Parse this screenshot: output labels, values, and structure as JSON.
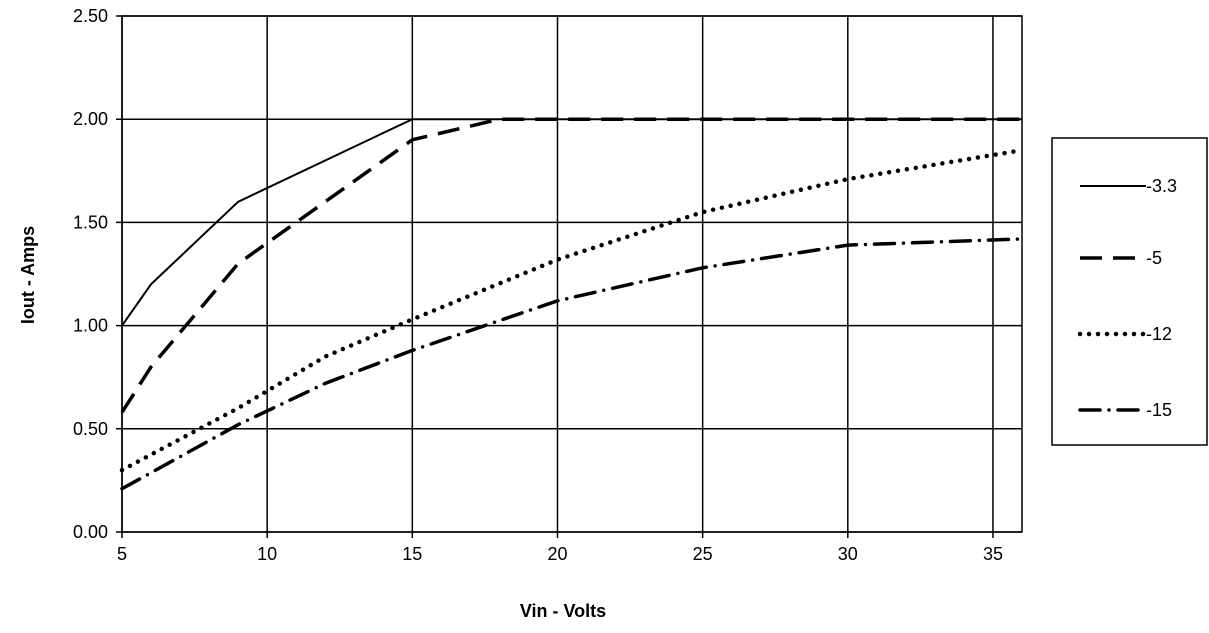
{
  "chart_data": {
    "type": "line",
    "title": "",
    "xlabel": "Vin - Volts",
    "ylabel": "Iout - Amps",
    "xlim": [
      5,
      36
    ],
    "ylim": [
      0,
      2.5
    ],
    "x_ticks": [
      5,
      10,
      15,
      20,
      25,
      30,
      35
    ],
    "x_tick_labels": [
      "5",
      "10",
      "15",
      "20",
      "25",
      "30",
      "35"
    ],
    "y_ticks": [
      0,
      0.5,
      1.0,
      1.5,
      2.0,
      2.5
    ],
    "y_tick_labels": [
      "0.00",
      "0.50",
      "1.00",
      "1.50",
      "2.00",
      "2.50"
    ],
    "grid": true,
    "legend_position": "right",
    "line_color": "#000000",
    "series": [
      {
        "name": "-3.3",
        "style": "solid",
        "x": [
          5,
          6,
          9,
          15,
          36
        ],
        "y": [
          1.0,
          1.2,
          1.6,
          2.0,
          2.0
        ]
      },
      {
        "name": "-5",
        "style": "dashed",
        "x": [
          5,
          6,
          9,
          15,
          18,
          36
        ],
        "y": [
          0.58,
          0.8,
          1.3,
          1.9,
          2.0,
          2.0
        ]
      },
      {
        "name": "-12",
        "style": "dotted",
        "x": [
          5,
          9,
          12,
          15,
          20,
          25,
          30,
          36
        ],
        "y": [
          0.3,
          0.6,
          0.85,
          1.03,
          1.32,
          1.55,
          1.71,
          1.85
        ]
      },
      {
        "name": "-15",
        "style": "dash-dot",
        "x": [
          5,
          9,
          12,
          15,
          20,
          25,
          30,
          36
        ],
        "y": [
          0.21,
          0.52,
          0.72,
          0.88,
          1.12,
          1.28,
          1.39,
          1.42
        ]
      }
    ]
  }
}
